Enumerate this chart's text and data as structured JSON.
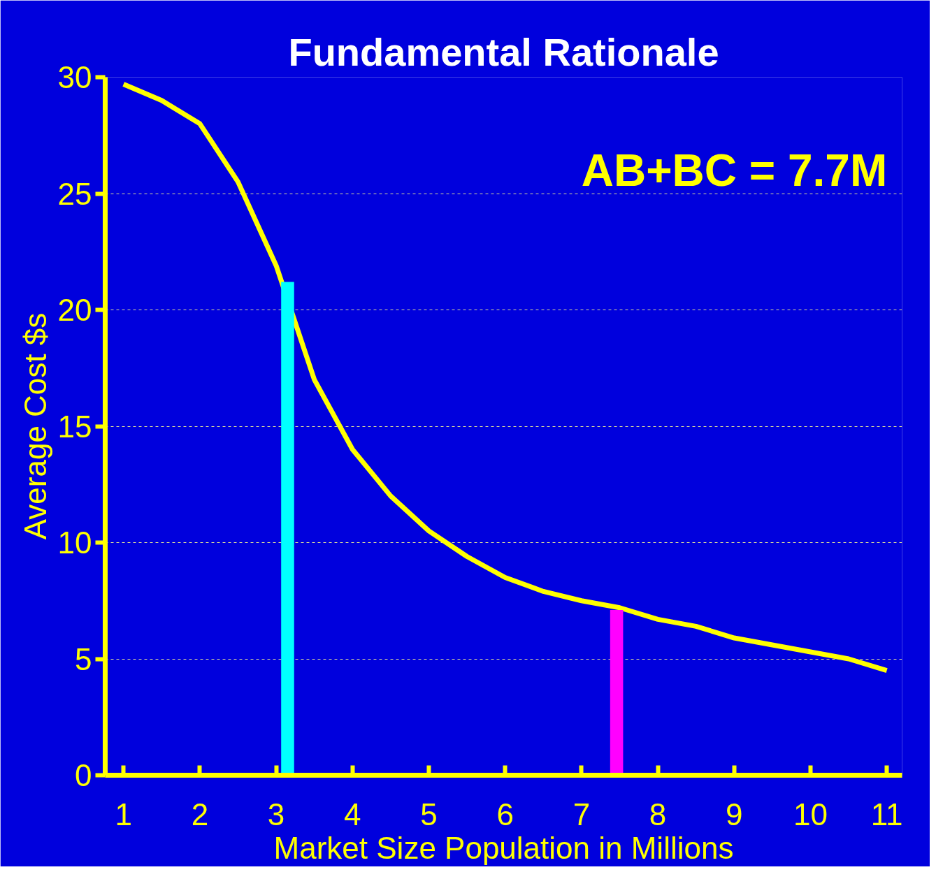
{
  "chart_data": {
    "type": "line",
    "title": "Fundamental Rationale",
    "xlabel": "Market Size Population in Millions",
    "ylabel": "Average Cost $s",
    "xlim": [
      0.76,
      11.2
    ],
    "xticks": [
      1,
      2,
      3,
      4,
      5,
      6,
      7,
      8,
      9,
      10,
      11
    ],
    "ylim": [
      0,
      30
    ],
    "yticks": [
      0,
      5,
      10,
      15,
      20,
      25,
      30
    ],
    "grid": "y",
    "annotations": [
      "AB+BC = 7.7M"
    ],
    "series": [
      {
        "color": "#ffff00",
        "x": [
          1,
          1.5,
          2,
          2.5,
          3,
          3.5,
          4,
          4.5,
          5,
          5.5,
          6,
          6.5,
          7,
          7.5,
          8,
          8.5,
          9,
          9.5,
          10,
          10.5,
          11
        ],
        "values": [
          29.7,
          29.0,
          28.0,
          25.5,
          21.9,
          17.0,
          14.0,
          12.0,
          10.5,
          9.4,
          8.5,
          7.9,
          7.5,
          7.2,
          6.7,
          6.4,
          5.9,
          5.6,
          5.3,
          5.0,
          4.5
        ]
      },
      {
        "type": "bar",
        "color": "#00ffff",
        "x": [
          3.15
        ],
        "values": [
          21.2
        ]
      },
      {
        "type": "bar",
        "color": "#ff00ff",
        "x": [
          7.46
        ],
        "values": [
          7.1
        ]
      }
    ]
  }
}
